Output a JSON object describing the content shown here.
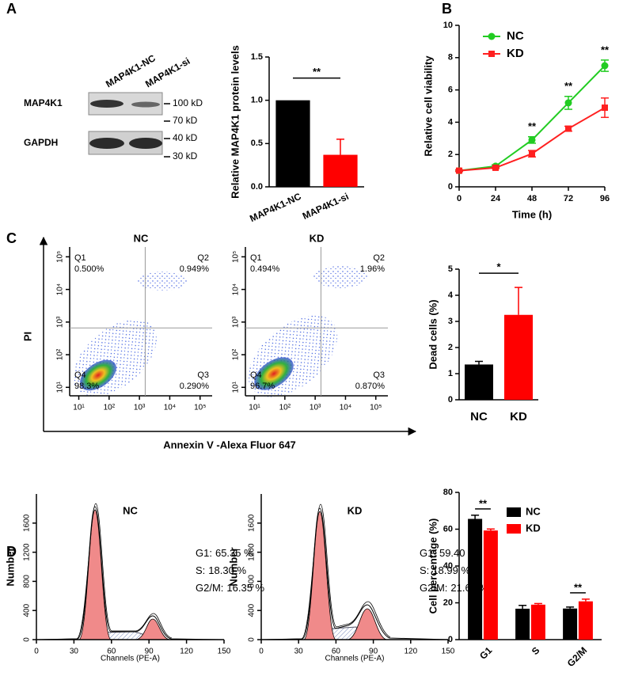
{
  "panel_labels": [
    "A",
    "B",
    "C",
    "D"
  ],
  "blot": {
    "columns": [
      "MAP4K1-NC",
      "MAP4K1-si"
    ],
    "rows": [
      "MAP4K1",
      "GAPDH"
    ],
    "markers": [
      "100 kD",
      "70 kD",
      "40 kD",
      "30 kD"
    ]
  },
  "flow_axes": {
    "x_label": "Annexin V -Alexa Fluor 647",
    "y_label": "PI"
  },
  "chart_data": [
    {
      "type": "bar",
      "y_label": "Relative MAP4K1 protein levels",
      "categories": [
        "MAP4K1-NC",
        "MAP4K1-si"
      ],
      "values": [
        1.0,
        0.37
      ],
      "errors": [
        0,
        0.18
      ],
      "colors": [
        "#000000",
        "#ff0000"
      ],
      "ylim": [
        0,
        1.5
      ],
      "yticks": [
        {
          "value": 0,
          "label": "0.0"
        },
        0.5,
        {
          "value": 1,
          "label": "1.0"
        },
        1.5
      ],
      "significance": {
        "label": "**"
      }
    },
    {
      "type": "line",
      "x_label": "Time (h)",
      "y_label": "Relative cell viability",
      "x": [
        0,
        24,
        48,
        72,
        96
      ],
      "series": [
        {
          "name": "NC",
          "color": "#22cc22",
          "marker": "circle",
          "values": [
            1,
            1.28,
            2.9,
            5.2,
            7.5
          ],
          "errors": [
            0.05,
            0.08,
            0.2,
            0.4,
            0.35
          ]
        },
        {
          "name": "KD",
          "color": "#ff2020",
          "marker": "square",
          "values": [
            1,
            1.18,
            2.05,
            3.6,
            4.9
          ],
          "errors": [
            0.05,
            0.05,
            0.2,
            0.15,
            0.6
          ]
        }
      ],
      "xlim": [
        0,
        96
      ],
      "xticks": [
        0,
        24,
        48,
        72,
        96
      ],
      "ylim": [
        0,
        10
      ],
      "yticks": [
        0,
        2,
        4,
        6,
        8,
        10
      ],
      "legend": "upper left",
      "significance": [
        {
          "x": 48,
          "label": "**"
        },
        {
          "x": 72,
          "label": "**"
        },
        {
          "x": 96,
          "label": "**"
        }
      ]
    },
    {
      "type": "flow",
      "title": "NC",
      "log_scale": true,
      "xlim": [
        5,
        250000
      ],
      "ylim": [
        5.5,
        200000
      ],
      "gate": {
        "x": 1550,
        "y": 660
      },
      "xticks": [
        {
          "value": 10,
          "label": "10¹"
        },
        {
          "value": 100,
          "label": "10²"
        },
        {
          "value": 1000,
          "label": "10³"
        },
        {
          "value": 10000,
          "label": "10⁴"
        },
        {
          "value": 100000,
          "label": "10⁵"
        }
      ],
      "yticks": [
        {
          "value": 10,
          "label": "10¹"
        },
        {
          "value": 100,
          "label": "10²"
        },
        {
          "value": 1000,
          "label": "10³"
        },
        {
          "value": 10000,
          "label": "10⁴"
        },
        {
          "value": 100000,
          "label": "10⁵"
        }
      ],
      "quadrants": [
        {
          "name": "Q1",
          "value": 0.5,
          "label": "0.500%"
        },
        {
          "name": "Q2",
          "value": 0.949,
          "label": "0.949%"
        },
        {
          "name": "Q3",
          "value": 0.29,
          "label": "0.290%"
        },
        {
          "name": "Q4",
          "value": 98.3,
          "label": "98.3%"
        }
      ]
    },
    {
      "type": "flow",
      "title": "KD",
      "log_scale": true,
      "xlim": [
        5,
        250000
      ],
      "ylim": [
        5.5,
        200000
      ],
      "gate": {
        "x": 1550,
        "y": 660
      },
      "xticks": [
        {
          "value": 10,
          "label": "10¹"
        },
        {
          "value": 100,
          "label": "10²"
        },
        {
          "value": 1000,
          "label": "10³"
        },
        {
          "value": 10000,
          "label": "10⁴"
        },
        {
          "value": 100000,
          "label": "10⁵"
        }
      ],
      "yticks": [
        {
          "value": 10,
          "label": "10¹"
        },
        {
          "value": 100,
          "label": "10²"
        },
        {
          "value": 1000,
          "label": "10³"
        },
        {
          "value": 10000,
          "label": "10⁴"
        },
        {
          "value": 100000,
          "label": "10⁵"
        }
      ],
      "quadrants": [
        {
          "name": "Q1",
          "value": 0.494,
          "label": "0.494%"
        },
        {
          "name": "Q2",
          "value": 1.96,
          "label": "1.96%"
        },
        {
          "name": "Q3",
          "value": 0.87,
          "label": "0.870%"
        },
        {
          "name": "Q4",
          "value": 96.7,
          "label": "96.7%"
        }
      ]
    },
    {
      "type": "bar",
      "y_label": "Dead cells (%)",
      "categories": [
        "NC",
        "KD"
      ],
      "values": [
        1.35,
        3.25
      ],
      "errors": [
        0.12,
        1.05
      ],
      "colors": [
        "#000000",
        "#ff0000"
      ],
      "ylim": [
        0,
        5
      ],
      "yticks": [
        0,
        1,
        2,
        3,
        4,
        5
      ],
      "significance": {
        "label": "*"
      }
    },
    {
      "type": "histogram",
      "title": "NC",
      "x_label": "Channels (PE-A)",
      "y_label": "Number",
      "xlim": [
        0,
        150
      ],
      "xticks": [
        0,
        30,
        60,
        90,
        120,
        150
      ],
      "ylim": [
        0,
        2000
      ],
      "yticks": [
        0,
        400,
        800,
        1200,
        1600
      ],
      "stats": [
        {
          "name": "G1:",
          "label": "65.35 %"
        },
        {
          "name": "S:",
          "label": "18.30 %"
        },
        {
          "name": "G2/M:",
          "label": "16.35 %"
        }
      ]
    },
    {
      "type": "histogram",
      "title": "KD",
      "x_label": "Channels (PE-A)",
      "y_label": "Number",
      "xlim": [
        0,
        150
      ],
      "xticks": [
        0,
        30,
        60,
        90,
        120,
        150
      ],
      "ylim": [
        0,
        2000
      ],
      "yticks": [
        0,
        400,
        800,
        1200,
        1600
      ],
      "stats": [
        {
          "name": "G1:",
          "label": "59.40 %"
        },
        {
          "name": "S:",
          "label": "18.99 %"
        },
        {
          "name": "G2/M:",
          "label": "21.62 %"
        }
      ]
    },
    {
      "type": "bar",
      "y_label": "Cell percentage (%)",
      "categories": [
        "G1",
        "S",
        "G2/M"
      ],
      "series": [
        {
          "name": "NC",
          "color": "#000000",
          "values": [
            65.6,
            16.8,
            16.9
          ],
          "errors": [
            2,
            1.8,
            0.8
          ]
        },
        {
          "name": "KD",
          "color": "#ff0000",
          "values": [
            59.3,
            19.0,
            20.8
          ],
          "errors": [
            0.8,
            0.6,
            1.2
          ]
        }
      ],
      "ylim": [
        0,
        80
      ],
      "yticks": [
        0,
        20,
        40,
        60,
        80
      ],
      "legend": "upper right",
      "significance": [
        {
          "category": 0,
          "label": "**"
        },
        {
          "category": 2,
          "label": "**"
        }
      ]
    }
  ]
}
